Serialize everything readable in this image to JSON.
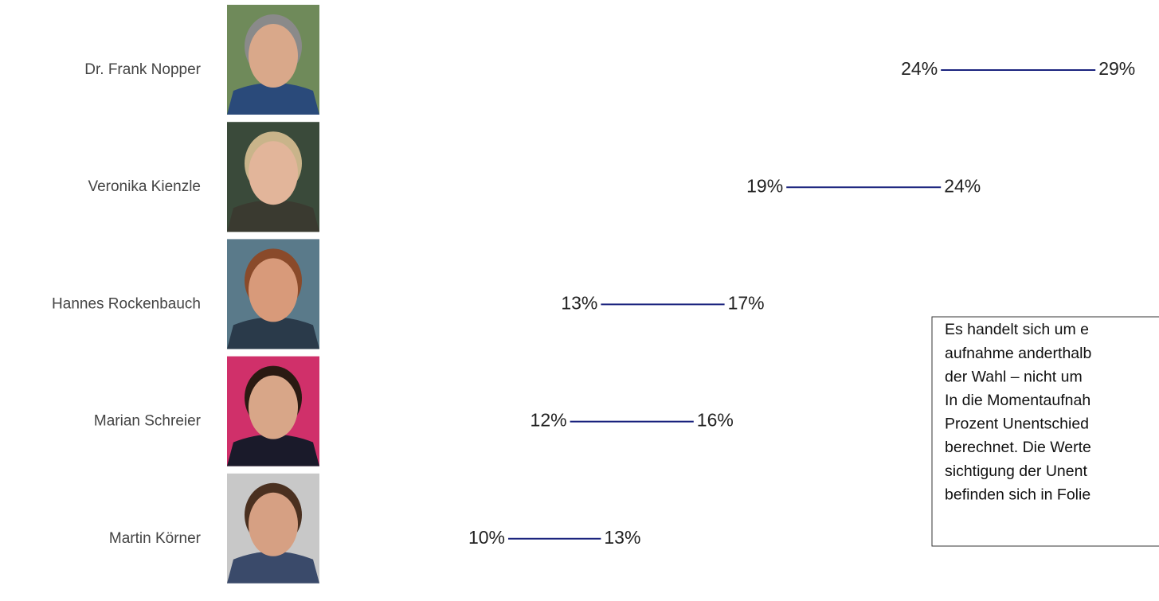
{
  "chart_data": {
    "type": "range",
    "categories": [
      "Dr. Frank Nopper",
      "Veronika Kienzle",
      "Hannes Rockenbauch",
      "Marian Schreier",
      "Martin Körner"
    ],
    "start": {
      "values": [
        24,
        19,
        13,
        12,
        10
      ],
      "value_labels": [
        "24%",
        "19%",
        "13%",
        "12%",
        "10%"
      ]
    },
    "end": {
      "values": [
        29,
        24,
        17,
        16,
        13
      ],
      "value_labels": [
        "29%",
        "24%",
        "17%",
        "16%",
        "13%"
      ]
    },
    "color": "#1a237e",
    "xlim": [
      0,
      30
    ],
    "annotation": [
      "Es handelt sich um e",
      "aufnahme anderthalb",
      "der Wahl – nicht um",
      "In die Momentaufnah",
      "Prozent Unentschied",
      "berechnet. Die Werte",
      "sichtigung der Unent",
      "befinden sich in Folie"
    ]
  }
}
